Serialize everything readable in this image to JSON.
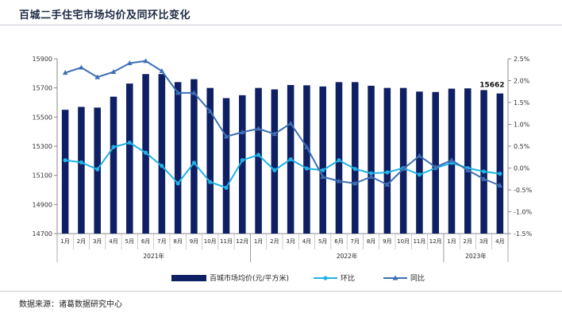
{
  "title": "百城二手住宅市场均价及同环比变化",
  "source": "数据来源：诸葛数据研究中心",
  "colors": {
    "bar": "#0f1f63",
    "mom": "#1eb3e6",
    "yoy": "#3d6fb4",
    "axis": "#888888"
  },
  "chart_data": {
    "type": "bar",
    "categories": [
      "1月",
      "2月",
      "3月",
      "4月",
      "5月",
      "6月",
      "7月",
      "8月",
      "9月",
      "10月",
      "11月",
      "12月",
      "1月",
      "2月",
      "3月",
      "4月",
      "5月",
      "6月",
      "7月",
      "8月",
      "9月",
      "10月",
      "11月",
      "12月",
      "1月",
      "2月",
      "3月",
      "4月"
    ],
    "year_groups": [
      {
        "label": "2021年",
        "start": 0,
        "end": 11
      },
      {
        "label": "2022年",
        "start": 12,
        "end": 23
      },
      {
        "label": "2023年",
        "start": 24,
        "end": 27
      }
    ],
    "ylim": [
      14700,
      15900
    ],
    "yticks": [
      14700,
      14900,
      15100,
      15300,
      15500,
      15700,
      15900
    ],
    "y2lim": [
      -1.5,
      2.5
    ],
    "y2ticks": [
      "-1.5%",
      "-1.0%",
      "-0.5%",
      "0.0%",
      "0.5%",
      "1.0%",
      "1.5%",
      "2.0%",
      "2.5%"
    ],
    "y2tick_values": [
      -1.5,
      -1.0,
      -0.5,
      0.0,
      0.5,
      1.0,
      1.5,
      2.0,
      2.5
    ],
    "series": [
      {
        "name": "百城市场均价(元/平方米)",
        "type": "bar",
        "axis": "left",
        "values": [
          15550,
          15570,
          15565,
          15640,
          15730,
          15795,
          15795,
          15740,
          15760,
          15700,
          15630,
          15650,
          15700,
          15690,
          15720,
          15718,
          15710,
          15740,
          15740,
          15715,
          15700,
          15700,
          15675,
          15672,
          15695,
          15697,
          15685,
          15662
        ]
      },
      {
        "name": "环比",
        "type": "line",
        "axis": "right",
        "values": [
          0.18,
          0.13,
          -0.03,
          0.48,
          0.58,
          0.35,
          0.05,
          -0.35,
          0.12,
          -0.32,
          -0.45,
          0.18,
          0.3,
          -0.05,
          0.2,
          -0.01,
          -0.05,
          0.18,
          -0.02,
          -0.12,
          -0.1,
          0.0,
          -0.15,
          0.0,
          0.12,
          0.0,
          -0.08,
          -0.13
        ]
      },
      {
        "name": "同比",
        "type": "line",
        "axis": "right",
        "values": [
          2.18,
          2.3,
          2.08,
          2.2,
          2.4,
          2.45,
          2.22,
          1.72,
          1.72,
          1.3,
          0.72,
          0.82,
          0.9,
          0.78,
          1.02,
          0.48,
          -0.2,
          -0.3,
          -0.35,
          -0.2,
          -0.38,
          -0.02,
          0.28,
          0.02,
          0.18,
          -0.05,
          -0.25,
          -0.4
        ]
      }
    ],
    "annotations": [
      {
        "index": 27,
        "text": "15662"
      }
    ],
    "legend_position": "bottom",
    "grid": false
  }
}
